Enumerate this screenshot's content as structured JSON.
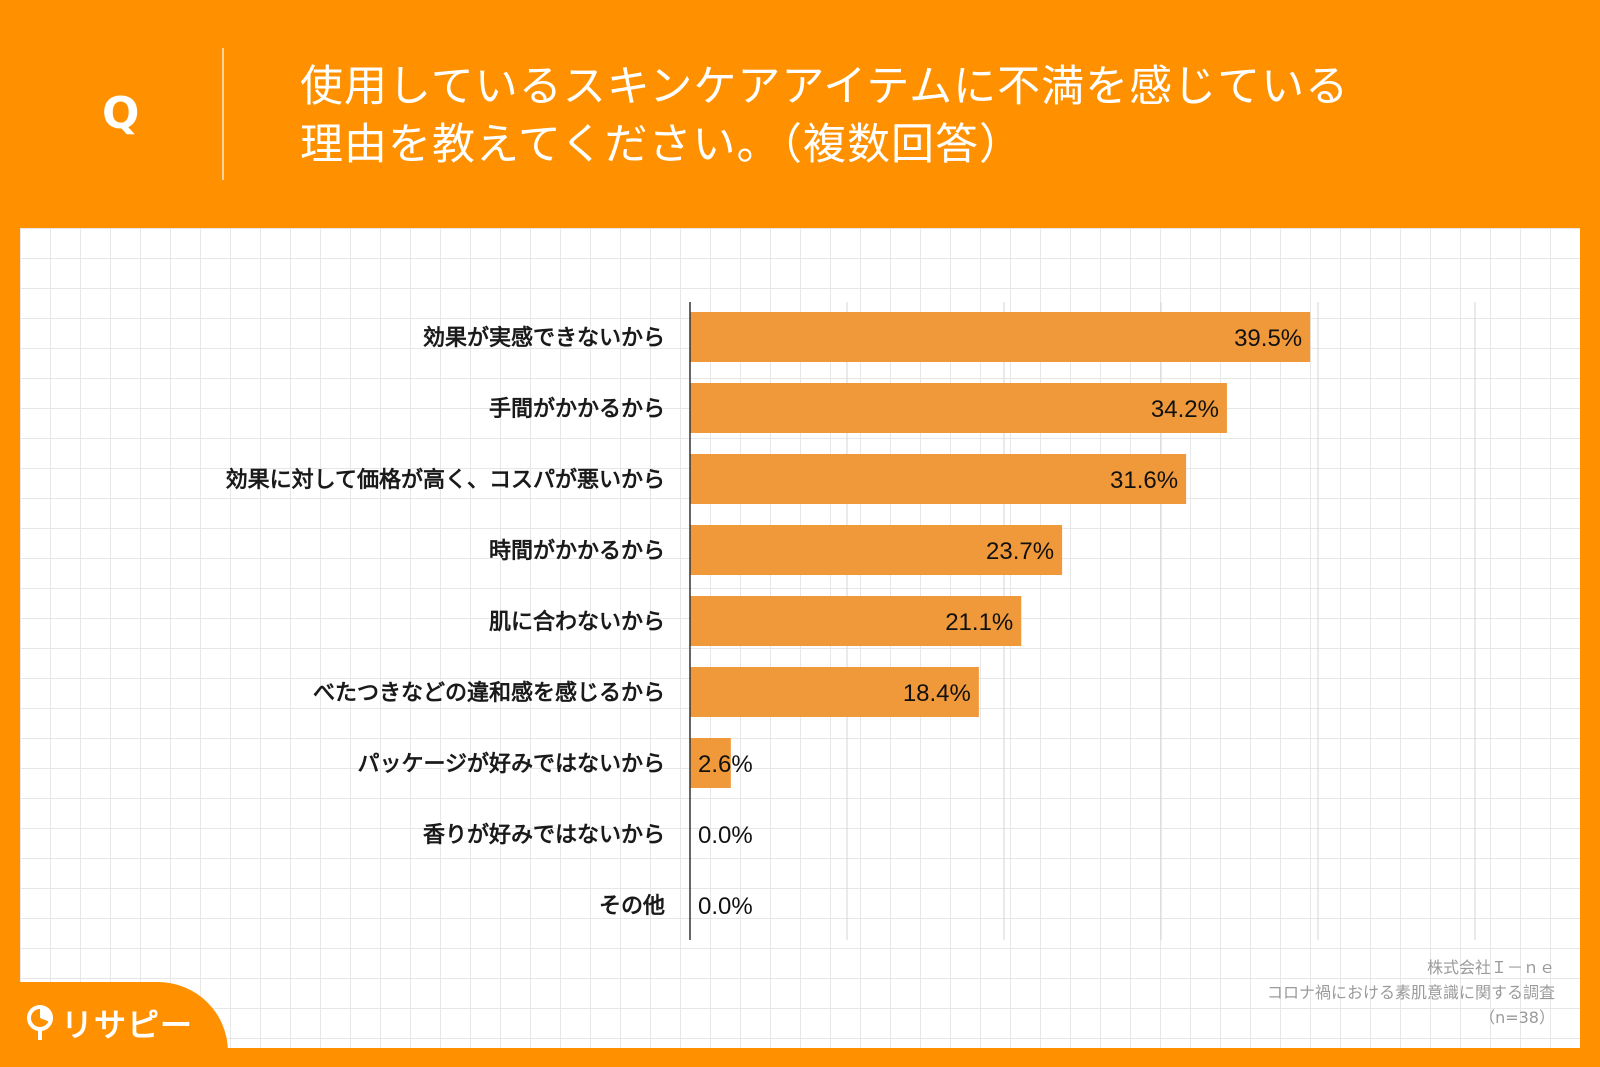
{
  "header": {
    "q_letter": "Q",
    "title_line1": "使用しているスキンケアアイテムに不満を感じている",
    "title_line2": "理由を教えてください。（複数回答）"
  },
  "chart_data": {
    "type": "bar",
    "orientation": "horizontal",
    "title": "使用しているスキンケアアイテムに不満を感じている理由を教えてください。（複数回答）",
    "categories": [
      "効果が実感できないから",
      "手間がかかるから",
      "効果に対して価格が高く、コスパが悪いから",
      "時間がかかるから",
      "肌に合わないから",
      "べたつきなどの違和感を感じるから",
      "パッケージが好みではないから",
      "香りが好みではないから",
      "その他"
    ],
    "values": [
      39.5,
      34.2,
      31.6,
      23.7,
      21.1,
      18.4,
      2.6,
      0.0,
      0.0
    ],
    "value_labels": [
      "39.5%",
      "34.2%",
      "31.6%",
      "23.7%",
      "21.1%",
      "18.4%",
      "2.6%",
      "0.0%",
      "0.0%"
    ],
    "xlim": [
      0,
      50
    ],
    "grid": true,
    "bar_color": "#f0993a"
  },
  "source": {
    "company": "株式会社Ｉ－ｎｅ",
    "survey": "コロナ禍における素肌意識に関する調査",
    "sample": "（n=38）"
  },
  "logo": {
    "text": "リサピー"
  }
}
